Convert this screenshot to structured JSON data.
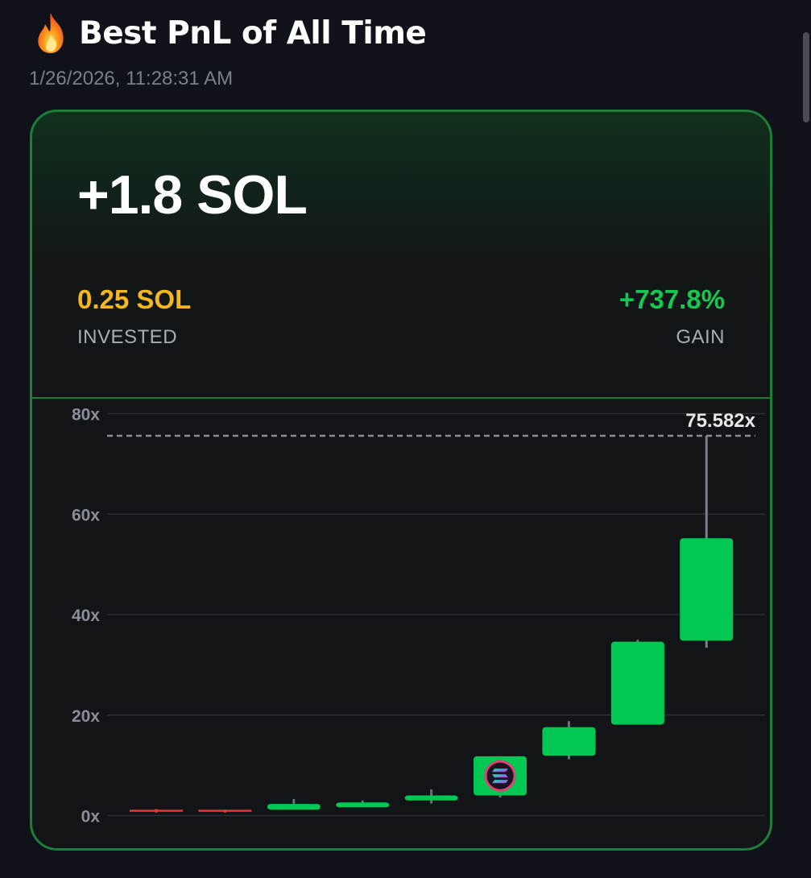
{
  "header": {
    "icon": "flame-icon",
    "title": "Best PnL of All Time",
    "timestamp": "1/26/2026, 11:28:31 AM"
  },
  "card": {
    "pnl": "+1.8 SOL",
    "invested_value": "0.25 SOL",
    "invested_label": "INVESTED",
    "gain_value": "+737.8%",
    "gain_label": "GAIN"
  },
  "colors": {
    "up": "#00c853",
    "down": "#e53935",
    "invested": "#f4b71d",
    "gain": "#17c653",
    "border": "#1f7d3a"
  },
  "chart_data": {
    "type": "candlestick",
    "ylim": [
      0,
      80
    ],
    "y_ticks": [
      0,
      20,
      40,
      60,
      80
    ],
    "y_tick_labels": [
      "0x",
      "20x",
      "40x",
      "60x",
      "80x"
    ],
    "peak_label": "75.582x",
    "peak_value": 75.582,
    "marker_icon": "solana-icon",
    "marker_candle_index": 5,
    "candles": [
      {
        "open": 1.0,
        "close": 1.0,
        "high": 1.3,
        "low": 0.6
      },
      {
        "open": 1.0,
        "close": 1.0,
        "high": 1.2,
        "low": 0.6
      },
      {
        "open": 1.2,
        "close": 2.3,
        "high": 3.3,
        "low": 1.2
      },
      {
        "open": 2.3,
        "close": 2.6,
        "high": 3.0,
        "low": 2.1
      },
      {
        "open": 3.0,
        "close": 4.0,
        "high": 5.2,
        "low": 2.4
      },
      {
        "open": 4.0,
        "close": 11.8,
        "high": 11.8,
        "low": 3.6
      },
      {
        "open": 11.9,
        "close": 17.6,
        "high": 18.8,
        "low": 11.2
      },
      {
        "open": 18.1,
        "close": 34.6,
        "high": 35.0,
        "low": 18.1
      },
      {
        "open": 34.8,
        "close": 55.2,
        "high": 75.582,
        "low": 33.4
      }
    ]
  }
}
